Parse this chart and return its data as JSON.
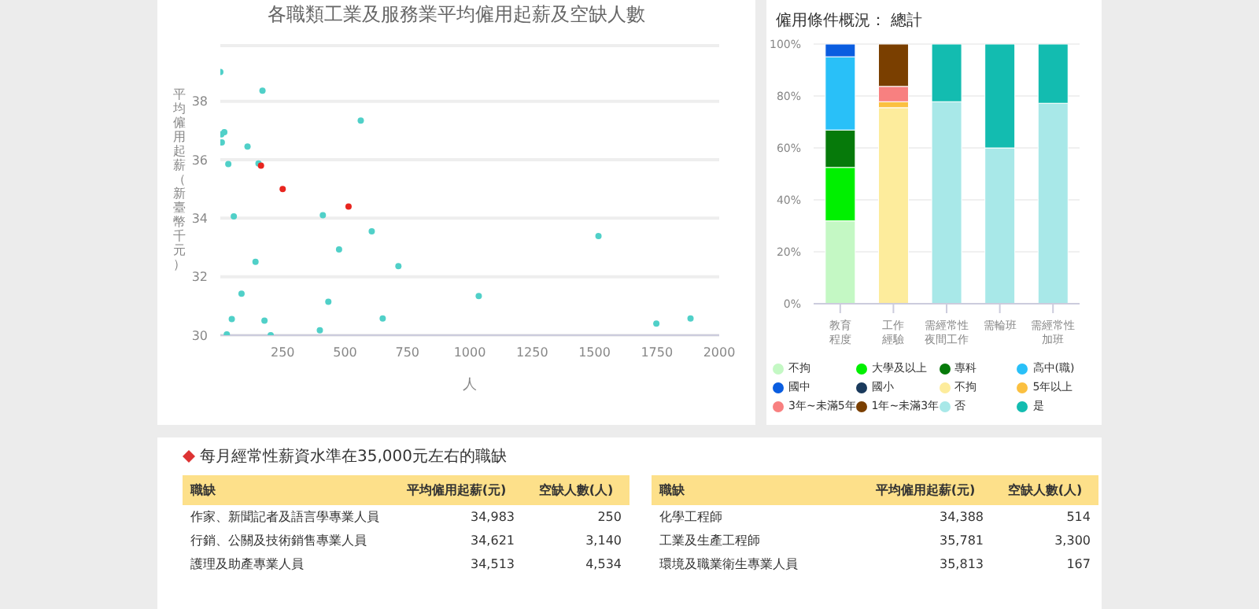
{
  "chart_data": [
    {
      "type": "scatter",
      "title": "各職類工業及服務業平均僱用起薪及空缺人數",
      "xlabel": "人",
      "ylabel": "平均僱用起薪（新臺幣千元）",
      "xlim": [
        0,
        2000
      ],
      "xticks": [
        250,
        500,
        750,
        1000,
        1250,
        1500,
        1750,
        2000
      ],
      "ylim": [
        30,
        39.9
      ],
      "yticks": [
        30,
        32,
        34,
        36,
        38
      ],
      "grid": "y",
      "marker": "circle",
      "series": [
        {
          "color": "#50d0c8",
          "x": [
            0,
            169,
            4,
            16,
            6,
            109,
            563,
            32,
            153,
            54,
            411,
            607,
            476,
            714,
            1516,
            141,
            85,
            433,
            1036,
            46,
            177,
            651,
            1748,
            1885,
            26,
            202,
            399
          ],
          "values": [
            39.0,
            38.36,
            36.87,
            36.94,
            36.59,
            36.45,
            37.34,
            35.85,
            35.87,
            34.06,
            34.1,
            33.55,
            32.93,
            32.36,
            33.39,
            32.51,
            31.42,
            31.14,
            31.34,
            30.55,
            30.5,
            30.57,
            30.4,
            30.57,
            30.03,
            30.0,
            30.17
          ]
        },
        {
          "color": "#e8251f",
          "x": [
            163,
            250,
            514
          ],
          "values": [
            35.8,
            35.0,
            34.4
          ]
        }
      ]
    },
    {
      "type": "bar",
      "title": "僱用條件概況： 總計",
      "stacked": true,
      "categories": [
        "教育程度",
        "工作經驗",
        "需經常性夜間工作",
        "需輪班",
        "需經常性加班"
      ],
      "ylim": [
        0,
        100
      ],
      "yticks": [
        {
          "value": 0,
          "label": "0%"
        },
        {
          "value": 20,
          "label": "20%"
        },
        {
          "value": 40,
          "label": "40%"
        },
        {
          "value": 60,
          "label": "60%"
        },
        {
          "value": 80,
          "label": "80%"
        },
        {
          "value": 100,
          "label": "100%"
        }
      ],
      "grid": "y",
      "legend": "bottom",
      "series": [
        {
          "name": "不拘",
          "color": "#c4f8c4",
          "values": [
            31.9,
            null,
            null,
            null,
            null
          ]
        },
        {
          "name": "大學及以上",
          "color": "#00f000",
          "values": [
            20.6,
            null,
            null,
            null,
            null
          ]
        },
        {
          "name": "專科",
          "color": "#067a0a",
          "values": [
            14.4,
            null,
            null,
            null,
            null
          ]
        },
        {
          "name": "高中(職)",
          "color": "#29c0f8",
          "values": [
            28.2,
            null,
            null,
            null,
            null
          ]
        },
        {
          "name": "國中",
          "color": "#0a5de0",
          "values": [
            4.9,
            null,
            null,
            null,
            null
          ]
        },
        {
          "name": "國小",
          "color": "#1a3a5c",
          "values": [
            0,
            null,
            null,
            null,
            null
          ]
        },
        {
          "name": "不拘",
          "color": "#fdec9c",
          "values": [
            null,
            75.5,
            null,
            null,
            null
          ]
        },
        {
          "name": "5年以上",
          "color": "#fbc040",
          "values": [
            null,
            2.3,
            null,
            null,
            null
          ]
        },
        {
          "name": "3年~未滿5年",
          "color": "#f88080",
          "values": [
            null,
            5.9,
            null,
            null,
            null
          ]
        },
        {
          "name": "1年~未滿3年",
          "color": "#7a3f00",
          "values": [
            null,
            16.3,
            null,
            null,
            null
          ]
        },
        {
          "name": "否",
          "color": "#a8e8e8",
          "values": [
            null,
            null,
            77.8,
            60,
            77.2
          ]
        },
        {
          "name": "是",
          "color": "#13bcb0",
          "values": [
            null,
            null,
            22.2,
            40,
            22.8
          ]
        }
      ]
    },
    {
      "type": "other",
      "title": "每月經常性薪資水準在35,000元左右的職缺",
      "annotations": [
        "職缺",
        "平均僱用起薪(元)",
        "空缺人數(人)",
        "作家、新聞記者及語言學專業人員",
        "34,983",
        "250",
        "行銷、公關及技術銷售專業人員",
        "34,621",
        "3,140",
        "護理及助產專業人員",
        "34,513",
        "4,534",
        "職缺",
        "平均僱用起薪(元)",
        "空缺人數(人)",
        "化學工程師",
        "34,388",
        "514",
        "工業及生產工程師",
        "35,781",
        "3,300",
        "環境及職業衛生專業人員",
        "35,813",
        "167"
      ]
    }
  ]
}
